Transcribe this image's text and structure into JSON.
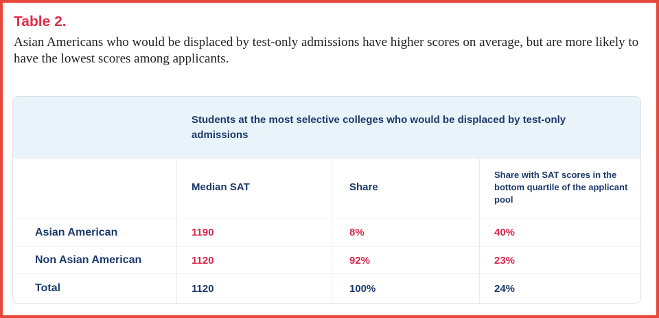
{
  "header": {
    "title": "Table 2.",
    "subtitle": "Asian Americans who would be displaced by test-only admissions have higher scores on average, but are more likely to have the lowest scores among applicants."
  },
  "table": {
    "group_header": "Students at the most selective colleges who would be displaced by test-only admissions",
    "columns": [
      "Median SAT",
      "Share",
      "Share with SAT scores in the bottom quartile of the applicant pool"
    ],
    "rows": [
      [
        "Asian American",
        "1190",
        "8%",
        "40%"
      ],
      [
        "Non Asian American",
        "1120",
        "92%",
        "23%"
      ],
      [
        "Total",
        "1120",
        "100%",
        "24%"
      ]
    ]
  }
}
